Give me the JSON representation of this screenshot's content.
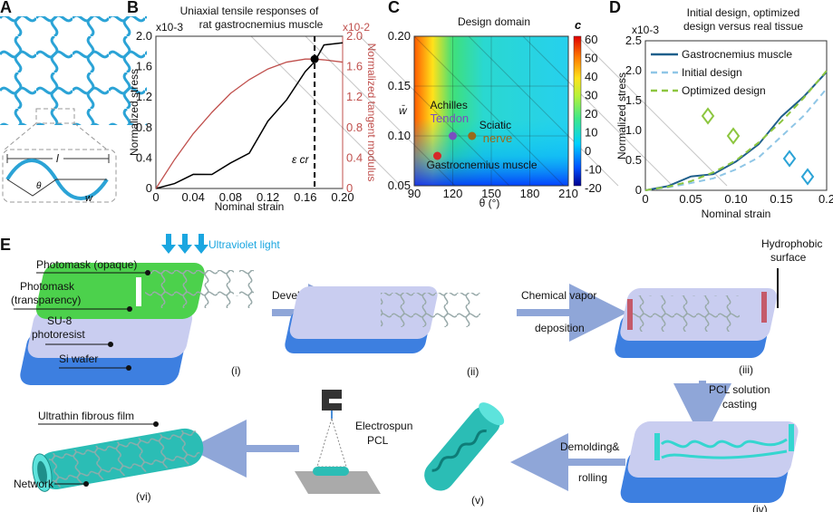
{
  "panels": {
    "A": {
      "letter": "A",
      "inset_length_label": "l",
      "inset_angle_label": "θ",
      "inset_width_label": "w",
      "lattice_color": "#2ba3d6"
    },
    "B": {
      "letter": "B",
      "title_line1": "Uniaxial tensile responses of",
      "title_line2": "rat gastrocnemius muscle"
    },
    "C": {
      "letter": "C"
    },
    "D": {
      "letter": "D"
    },
    "E": {
      "letter": "E",
      "uv_label": "Ultraviolet light",
      "layer_labels": [
        "Photomask (opaque)",
        "Photomask",
        "(transparency)",
        "SU-8",
        "photoresist",
        "Si wafer"
      ],
      "steps": {
        "development": "Development",
        "cvd_line1": "Chemical vapor",
        "cvd_line2": "deposition",
        "hydrophobic_line1": "Hydrophobic",
        "hydrophobic_line2": "surface",
        "pcl_line1": "PCL solution",
        "pcl_line2": "casting",
        "demold_line1": "Demolding&",
        "demold_line2": "rolling",
        "electrospun_line1": "Electrospun",
        "electrospun_line2": "PCL",
        "film_label": "Ultrathin fibrous film",
        "network_label": "Network"
      },
      "stage_labels": [
        "(i)",
        "(ii)",
        "(iii)",
        "(iv)",
        "(v)",
        "(vi)"
      ],
      "colors": {
        "photomask": "#4cd14c",
        "su8": "#c9cdf0",
        "wafer": "#3d7fe0",
        "pcl": "#35d6d0",
        "hydrophobic": "#c45a6a",
        "arrow": "#8fa6d8",
        "uv": "#1aa6e0"
      }
    }
  },
  "chart_data": [
    {
      "type": "line",
      "panel": "B",
      "title": "Uniaxial tensile responses of rat gastrocnemius muscle",
      "xlabel": "Nominal strain",
      "ylabel": "Normalized stress",
      "ylabel_right": "Normalized tangent modulus",
      "y_multiplier": "x10-3",
      "y_right_multiplier": "x10-2",
      "xlim": [
        0,
        0.2
      ],
      "ylim": [
        0,
        2.0
      ],
      "ylim_right": [
        0,
        2.0
      ],
      "xticks": [
        "0",
        "0.04",
        "0.08",
        "0.12",
        "0.16",
        "0.20"
      ],
      "yticks": [
        "0",
        "0.4",
        "0.8",
        "1.2",
        "1.6",
        "2.0"
      ],
      "yticks_right": [
        "0",
        "0.4",
        "0.8",
        "1.2",
        "1.6",
        "2.0"
      ],
      "annotation": "ε cr",
      "critical_strain": 0.17,
      "x": [
        0,
        0.02,
        0.04,
        0.06,
        0.08,
        0.1,
        0.12,
        0.14,
        0.16,
        0.17,
        0.18,
        0.2
      ],
      "series": [
        {
          "axis": "left",
          "color": "#000000",
          "values": [
            0,
            0.1,
            0.15,
            0.22,
            0.3,
            0.5,
            0.85,
            1.2,
            1.5,
            1.7,
            1.85,
            1.95
          ]
        },
        {
          "axis": "right",
          "color": "#c0504d",
          "values": [
            0,
            0.38,
            0.72,
            1.0,
            1.25,
            1.43,
            1.57,
            1.66,
            1.7,
            1.7,
            1.69,
            1.66
          ]
        }
      ]
    },
    {
      "type": "heatmap",
      "panel": "C",
      "title": "Design domain",
      "xlabel": "θ (°)",
      "ylabel": "w̄",
      "colorbar_label": "c",
      "xlim": [
        90,
        210
      ],
      "ylim": [
        0.05,
        0.2
      ],
      "xticks": [
        "90",
        "120",
        "150",
        "180",
        "210"
      ],
      "yticks": [
        "0.05",
        "0.10",
        "0.15",
        "0.20"
      ],
      "colorbar_ticks": [
        "60",
        "50",
        "40",
        "30",
        "20",
        "10",
        "0",
        "-10",
        "-20"
      ],
      "points": [
        {
          "label_line1": "Achilles",
          "label_line2": "Tendon",
          "theta": 120,
          "w": 0.1,
          "color": "#7a4fc0"
        },
        {
          "label_line1": "Sciatic",
          "label_line2": "nerve",
          "theta": 135,
          "w": 0.1,
          "color": "#9a6a1a"
        },
        {
          "label_line1": "Gastrocnemius muscle",
          "label_line2": "",
          "theta": 108,
          "w": 0.08,
          "color": "#d62828"
        }
      ]
    },
    {
      "type": "line",
      "panel": "D",
      "title_line1": "Initial design, optimized",
      "title_line2": "design versus real tissue",
      "xlabel": "Nominal strain",
      "ylabel": "Normalized stress",
      "y_multiplier": "x10-3",
      "xlim": [
        0,
        0.2
      ],
      "ylim": [
        0,
        2.5
      ],
      "xticks": [
        "0",
        "0.05",
        "0.10",
        "0.15",
        "0.2"
      ],
      "yticks": [
        "0",
        "0.5",
        "1.0",
        "1.5",
        "2.0",
        "2.5"
      ],
      "legend": "top-left",
      "x": [
        0,
        0.025,
        0.05,
        0.075,
        0.1,
        0.125,
        0.15,
        0.175,
        0.2
      ],
      "series": [
        {
          "name": "Gastrocnemius muscle",
          "color": "#1f5f8b",
          "dash": "solid",
          "values": [
            0,
            0.1,
            0.2,
            0.3,
            0.45,
            0.8,
            1.2,
            1.6,
            1.95
          ]
        },
        {
          "name": "Initial design",
          "color": "#8fc6e6",
          "dash": "dashed",
          "values": [
            0,
            0.05,
            0.12,
            0.2,
            0.35,
            0.55,
            0.9,
            1.25,
            1.7
          ]
        },
        {
          "name": "Optimized design",
          "color": "#8cc63f",
          "dash": "dashed",
          "values": [
            0,
            0.06,
            0.15,
            0.3,
            0.5,
            0.8,
            1.15,
            1.55,
            2.0
          ]
        }
      ]
    }
  ]
}
